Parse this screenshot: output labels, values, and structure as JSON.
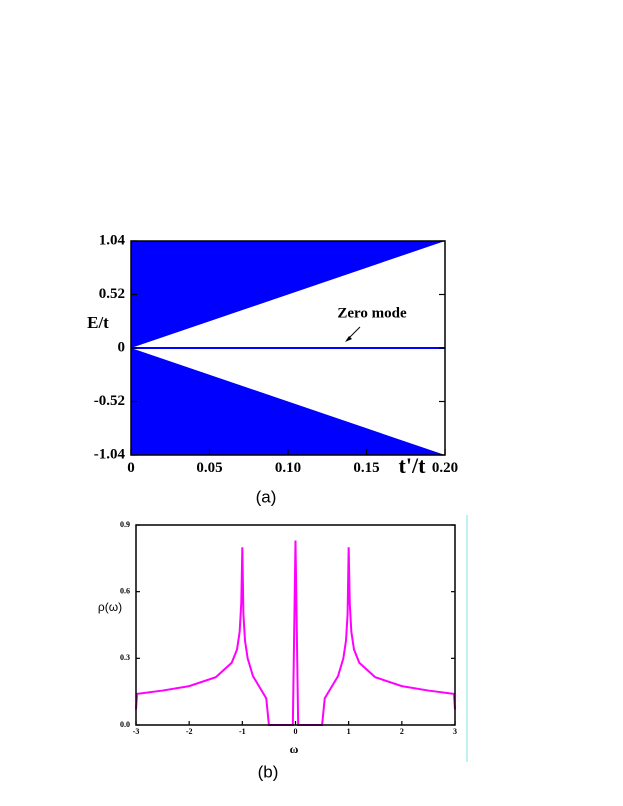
{
  "chart_data": [
    {
      "type": "area",
      "x": [
        0,
        0.2
      ],
      "series": [
        {
          "color": "#0000ff",
          "values": [
            0,
            1.04
          ],
          "fill": "above"
        },
        {
          "color": "#0000ff",
          "values": [
            0,
            -1.04
          ],
          "fill": "below"
        },
        {
          "color": "#0000ff",
          "values": [
            0,
            0
          ]
        }
      ],
      "xlim": [
        0,
        0.2
      ],
      "ylim": [
        -1.04,
        1.04
      ],
      "xticks": [
        0,
        0.05,
        {
          "value": 0.1,
          "label": "0.10"
        },
        0.15,
        {
          "value": 0.2,
          "label": "0.20"
        }
      ],
      "yticks": [
        -1.04,
        -0.52,
        0,
        0.52,
        1.04
      ],
      "xlabel": "t'/t",
      "ylabel": "E/t",
      "annotation": "Zero mode",
      "caption": "(a)"
    },
    {
      "type": "line",
      "x": [
        -3,
        -2.98,
        -2.5,
        -2,
        -1.5,
        -1.2,
        -1.1,
        -1.05,
        -1.02,
        -1,
        -0.98,
        -0.95,
        -0.9,
        -0.8,
        -0.7,
        -0.6,
        -0.55,
        -0.5,
        -0.05,
        0,
        0.05,
        0.5,
        0.55,
        0.6,
        0.7,
        0.8,
        0.9,
        0.95,
        0.98,
        1,
        1.02,
        1.05,
        1.1,
        1.2,
        1.5,
        2,
        2.5,
        2.98,
        3
      ],
      "series": [
        {
          "color": "#ff00ff",
          "values": [
            0.07,
            0.14,
            0.155,
            0.175,
            0.215,
            0.28,
            0.34,
            0.42,
            0.55,
            0.8,
            0.5,
            0.38,
            0.3,
            0.22,
            0.18,
            0.14,
            0.12,
            0,
            0,
            0.83,
            0,
            0,
            0.12,
            0.14,
            0.18,
            0.22,
            0.3,
            0.38,
            0.5,
            0.8,
            0.55,
            0.42,
            0.34,
            0.28,
            0.215,
            0.175,
            0.155,
            0.14,
            0.07
          ]
        }
      ],
      "xlim": [
        -3,
        3
      ],
      "ylim": [
        0,
        0.9
      ],
      "xticks": [
        -3,
        -2,
        -1,
        0,
        1,
        2,
        3
      ],
      "yticks": [
        {
          "value": 0,
          "label": "0.0"
        },
        0.3,
        0.6,
        0.9
      ],
      "xlabel": "ω",
      "ylabel": "ρ(ω)",
      "caption": "(b)"
    }
  ]
}
